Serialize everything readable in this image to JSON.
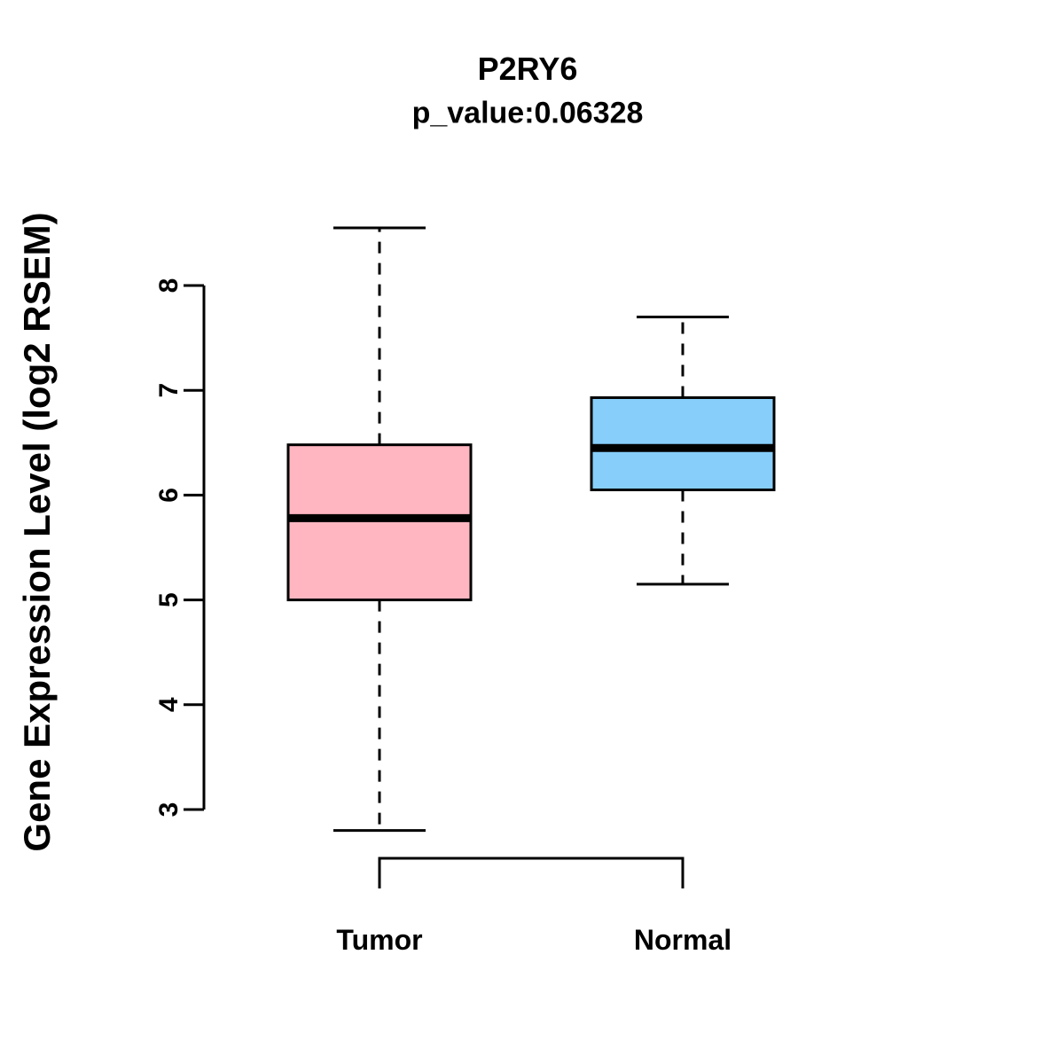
{
  "title": "P2RY6",
  "subtitle": "p_value:0.06328",
  "chart_data": {
    "type": "boxplot",
    "title": "P2RY6",
    "subtitle": "p_value:0.06328",
    "xlabel": "",
    "ylabel": "Gene Expression Level (log2 RSEM)",
    "yticks": [
      3,
      4,
      5,
      6,
      7,
      8
    ],
    "ylim": [
      2.6,
      8.7
    ],
    "grid": false,
    "legend": "none",
    "categories": [
      "Tumor",
      "Normal"
    ],
    "series": [
      {
        "name": "Tumor",
        "color": "#FFB6C1",
        "lower_whisker": 2.8,
        "q1": 5.0,
        "median": 5.78,
        "q3": 6.48,
        "upper_whisker": 8.55
      },
      {
        "name": "Normal",
        "color": "#87CEFA",
        "lower_whisker": 5.15,
        "q1": 6.05,
        "median": 6.45,
        "q3": 6.93,
        "upper_whisker": 7.7
      }
    ]
  }
}
